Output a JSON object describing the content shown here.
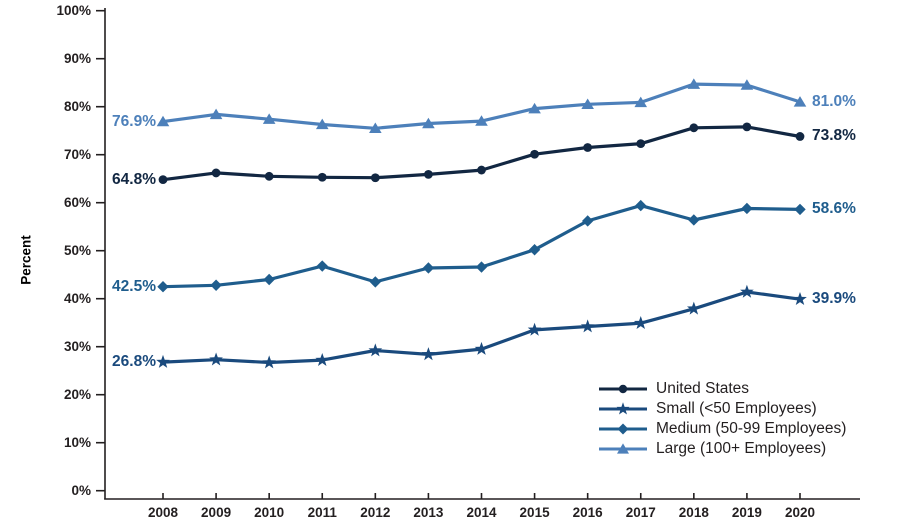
{
  "chart_data": {
    "type": "line",
    "title": "",
    "ylabel": "Percent",
    "grid": false,
    "legend_position": "inside-bottom-right",
    "ylim": [
      0,
      100
    ],
    "yticks": [
      "0%",
      "10%",
      "20%",
      "30%",
      "40%",
      "50%",
      "60%",
      "70%",
      "80%",
      "90%",
      "100%"
    ],
    "x": [
      "2008",
      "2009",
      "2010",
      "2011",
      "2012",
      "2013",
      "2014",
      "2015",
      "2016",
      "2017",
      "2018",
      "2019",
      "2020"
    ],
    "series": [
      {
        "name": "United States",
        "marker": "circle",
        "color": "#122742",
        "values": [
          64.8,
          66.2,
          65.5,
          65.3,
          65.2,
          65.9,
          66.8,
          70.1,
          71.5,
          72.3,
          75.6,
          75.8,
          73.8
        ],
        "first_label": "64.8%",
        "last_label": "73.8%"
      },
      {
        "name": "Small (<50 Employees)",
        "marker": "star",
        "color": "#1a4a7d",
        "values": [
          26.8,
          27.3,
          26.7,
          27.2,
          29.2,
          28.4,
          29.5,
          33.5,
          34.2,
          34.9,
          37.9,
          41.4,
          39.9
        ],
        "first_label": "26.8%",
        "last_label": "39.9%"
      },
      {
        "name": "Medium (50-99 Employees)",
        "marker": "diamond",
        "color": "#1f5d8d",
        "values": [
          42.5,
          42.8,
          44.0,
          46.8,
          43.5,
          46.4,
          46.6,
          50.2,
          56.2,
          59.4,
          56.4,
          58.8,
          58.6
        ],
        "first_label": "42.5%",
        "last_label": "58.6%"
      },
      {
        "name": "Large (100+ Employees)",
        "marker": "triangle",
        "color": "#4d80ba",
        "values": [
          76.9,
          78.4,
          77.4,
          76.3,
          75.5,
          76.5,
          77.0,
          79.6,
          80.5,
          80.9,
          84.7,
          84.5,
          81.0
        ],
        "first_label": "76.9%",
        "last_label": "81.0%"
      }
    ]
  }
}
